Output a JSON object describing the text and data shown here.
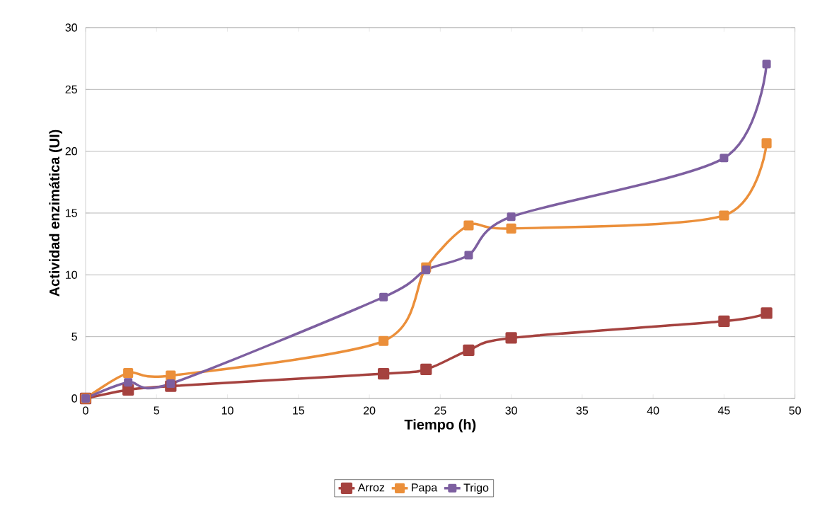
{
  "chart_data": {
    "type": "line",
    "xlabel": "Tiempo (h)",
    "ylabel": "Actividad enzimática (UI)",
    "x": [
      0,
      3,
      6,
      21,
      24,
      27,
      30,
      45,
      48
    ],
    "series": [
      {
        "name": "Arroz",
        "color": "#a5423f",
        "values": [
          0,
          0.7,
          1.0,
          2.0,
          2.35,
          3.9,
          4.9,
          6.25,
          6.9
        ]
      },
      {
        "name": "Papa",
        "color": "#eb8f3a",
        "values": [
          0,
          2.05,
          1.85,
          4.65,
          10.6,
          14.0,
          13.75,
          14.8,
          20.65
        ]
      },
      {
        "name": "Trigo",
        "color": "#7d5fa0",
        "values": [
          0,
          1.3,
          1.2,
          8.2,
          10.4,
          11.6,
          14.7,
          19.45,
          27.05
        ]
      }
    ],
    "xlim": [
      0,
      50
    ],
    "ylim": [
      0,
      30
    ],
    "xticks": [
      0,
      5,
      10,
      15,
      20,
      25,
      30,
      35,
      40,
      45,
      50
    ],
    "yticks": [
      0,
      5,
      10,
      15,
      20,
      25,
      30
    ],
    "grid": "y",
    "legend": "bottom",
    "marker": "square",
    "line_style": "solid"
  }
}
